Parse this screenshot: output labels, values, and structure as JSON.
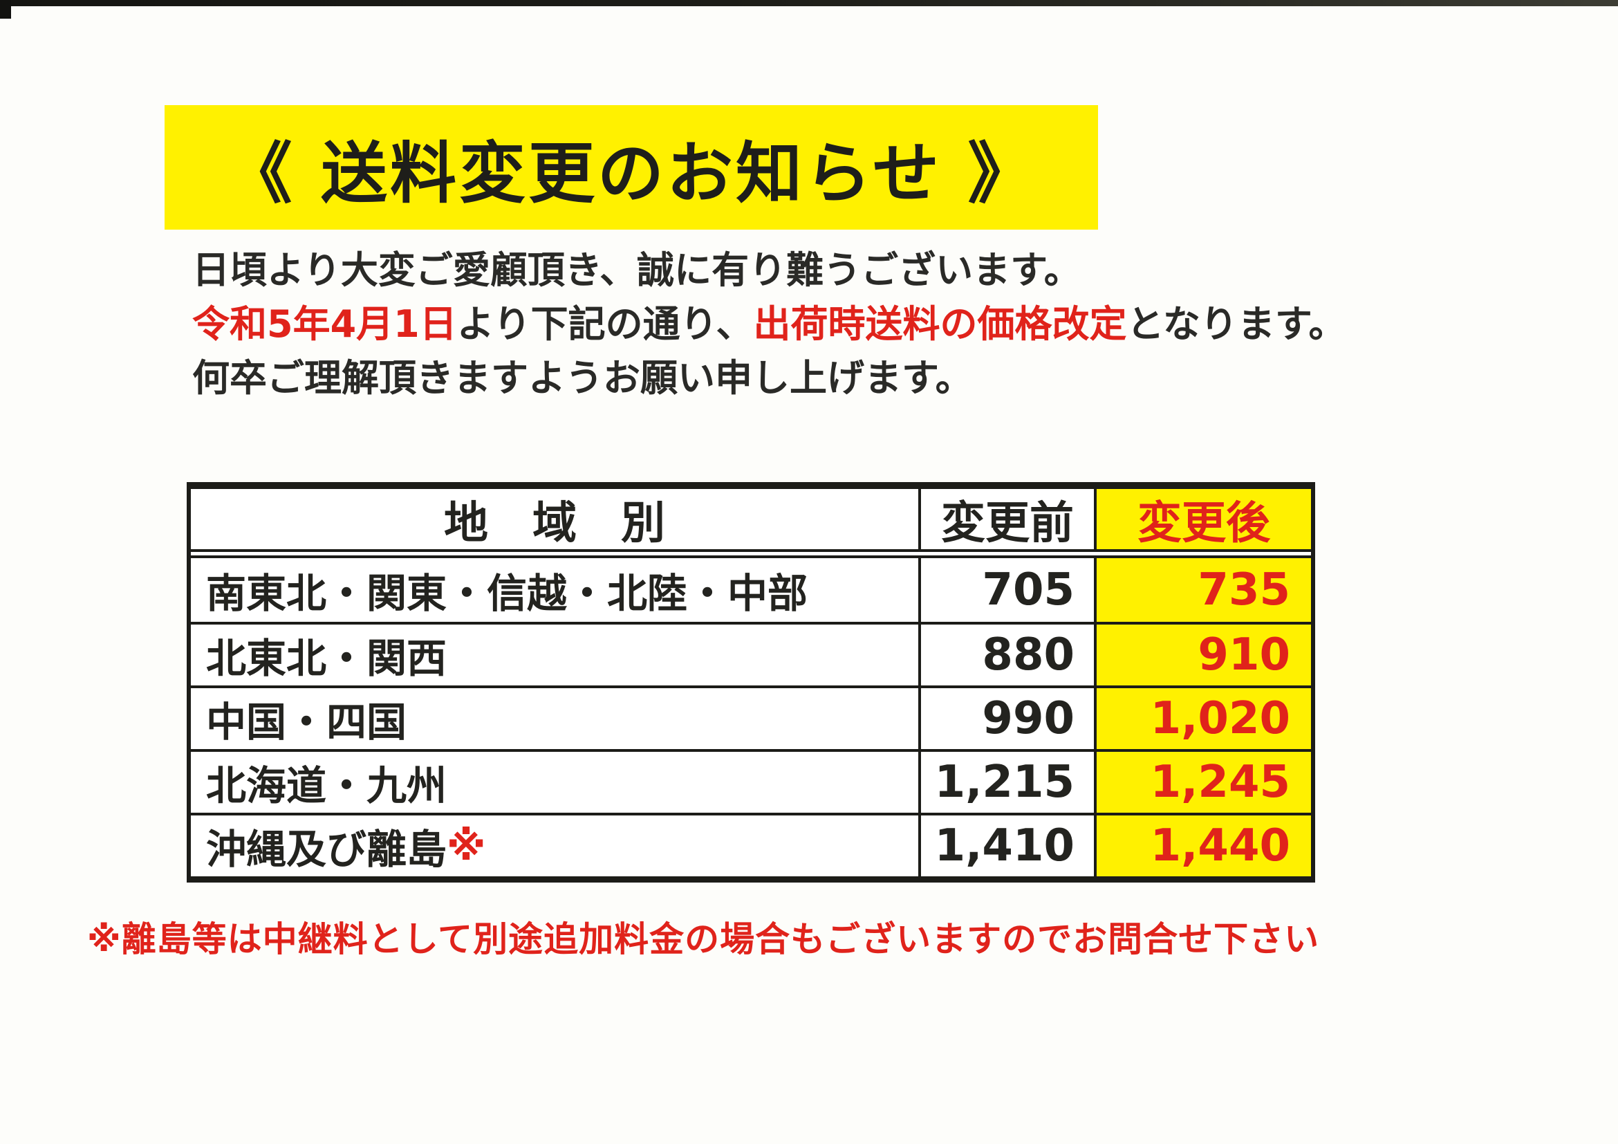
{
  "colors": {
    "highlight_yellow": "#fff100",
    "accent_red": "#e0231b",
    "text_black": "#23231f"
  },
  "banner": {
    "title": "《 送料変更のお知らせ 》"
  },
  "notice": {
    "greeting": "日頃より大変ご愛顧頂き、誠に有り難うございます。",
    "effective_date": "令和5年4月1日",
    "middle": "より下記の通り、",
    "emphasis": "出荷時送料の価格改定",
    "tail": "となります。",
    "closing": "何卒ご理解頂きますようお願い申し上げます。"
  },
  "table": {
    "headers": {
      "region": "地　域　別",
      "before": "変更前",
      "after": "変更後"
    },
    "rows": [
      {
        "region": "南東北・関東・信越・北陸・中部",
        "region_mark": "",
        "before": "705",
        "after": "735"
      },
      {
        "region": "北東北・関西",
        "region_mark": "",
        "before": "880",
        "after": "910"
      },
      {
        "region": "中国・四国",
        "region_mark": "",
        "before": "990",
        "after": "1,020"
      },
      {
        "region": "北海道・九州",
        "region_mark": "",
        "before": "1,215",
        "after": "1,245"
      },
      {
        "region": "沖縄及び離島",
        "region_mark": "※",
        "before": "1,410",
        "after": "1,440"
      }
    ]
  },
  "footnote": "※離島等は中継料として別途追加料金の場合もございますのでお問合せ下さい"
}
